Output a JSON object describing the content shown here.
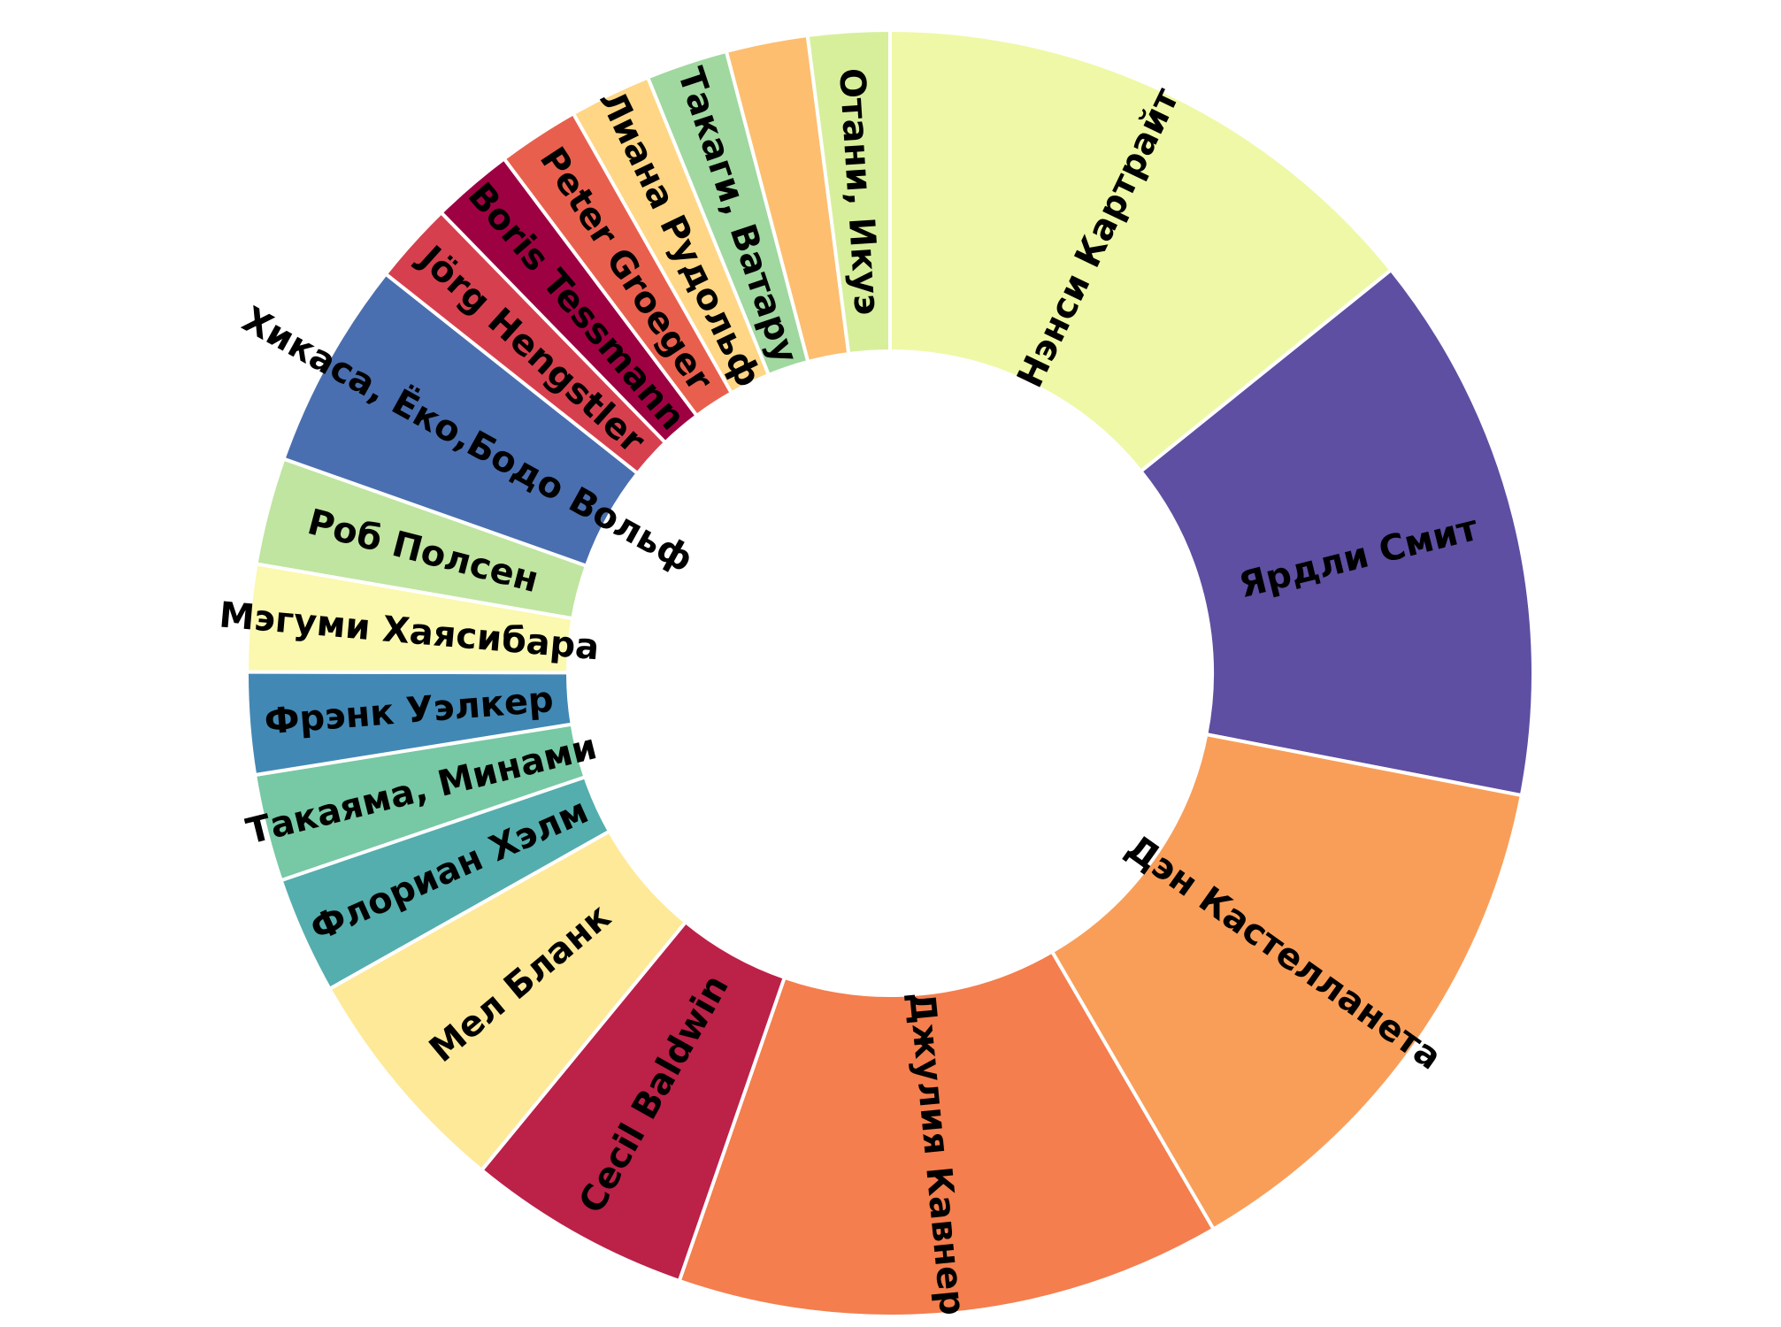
{
  "chart_data": {
    "type": "pie",
    "style": "donut",
    "start_angle_clockwise_from_top": 0,
    "direction": "clockwise",
    "slices": [
      {
        "label": "Нэнси Картрайт",
        "value": 11.1,
        "color": "#eff8a6"
      },
      {
        "label": "Ярдли Смит",
        "value": 10.8,
        "color": "#5e4fa2"
      },
      {
        "label": "Дэн Кастелланета",
        "value": 10.6,
        "color": "#f99e59"
      },
      {
        "label": "Джулия Кавнер",
        "value": 10.7,
        "color": "#f47e4d"
      },
      {
        "label": "Cecil Baldwin",
        "value": 4.4,
        "color": "#bc2148"
      },
      {
        "label": "Мел Бланк",
        "value": 4.6,
        "color": "#fee999"
      },
      {
        "label": "Флориан Хэлм",
        "value": 2.3,
        "color": "#54aead"
      },
      {
        "label": "Такаяма, Минами",
        "value": 2.1,
        "color": "#77c8a4"
      },
      {
        "label": "Фрэнк Уэлкер",
        "value": 2.0,
        "color": "#4288b5"
      },
      {
        "label": "Мэгуми Хаясибара",
        "value": 2.1,
        "color": "#fbf8b0"
      },
      {
        "label": "Роб Полсен",
        "value": 2.1,
        "color": "#bfe5a0"
      },
      {
        "label": "Хикаса, Ёко,Бодо Вольф",
        "value": 4.1,
        "color": "#4a6fb0"
      },
      {
        "label": "Jörg Hengstler",
        "value": 1.6,
        "color": "#d6404e"
      },
      {
        "label": "Boris Tessmann",
        "value": 1.6,
        "color": "#9e0142"
      },
      {
        "label": "Peter Groeger",
        "value": 1.6,
        "color": "#e8604d"
      },
      {
        "label": "Лиана Рудольф",
        "value": 1.6,
        "color": "#fed685"
      },
      {
        "label": "Такаги, Ватару",
        "value": 1.6,
        "color": "#a0d8a0"
      },
      {
        "label": "",
        "value": 1.6,
        "color": "#fdbe70"
      },
      {
        "label": "Отани, Икуэ",
        "value": 1.6,
        "color": "#d7ef9b"
      }
    ]
  }
}
